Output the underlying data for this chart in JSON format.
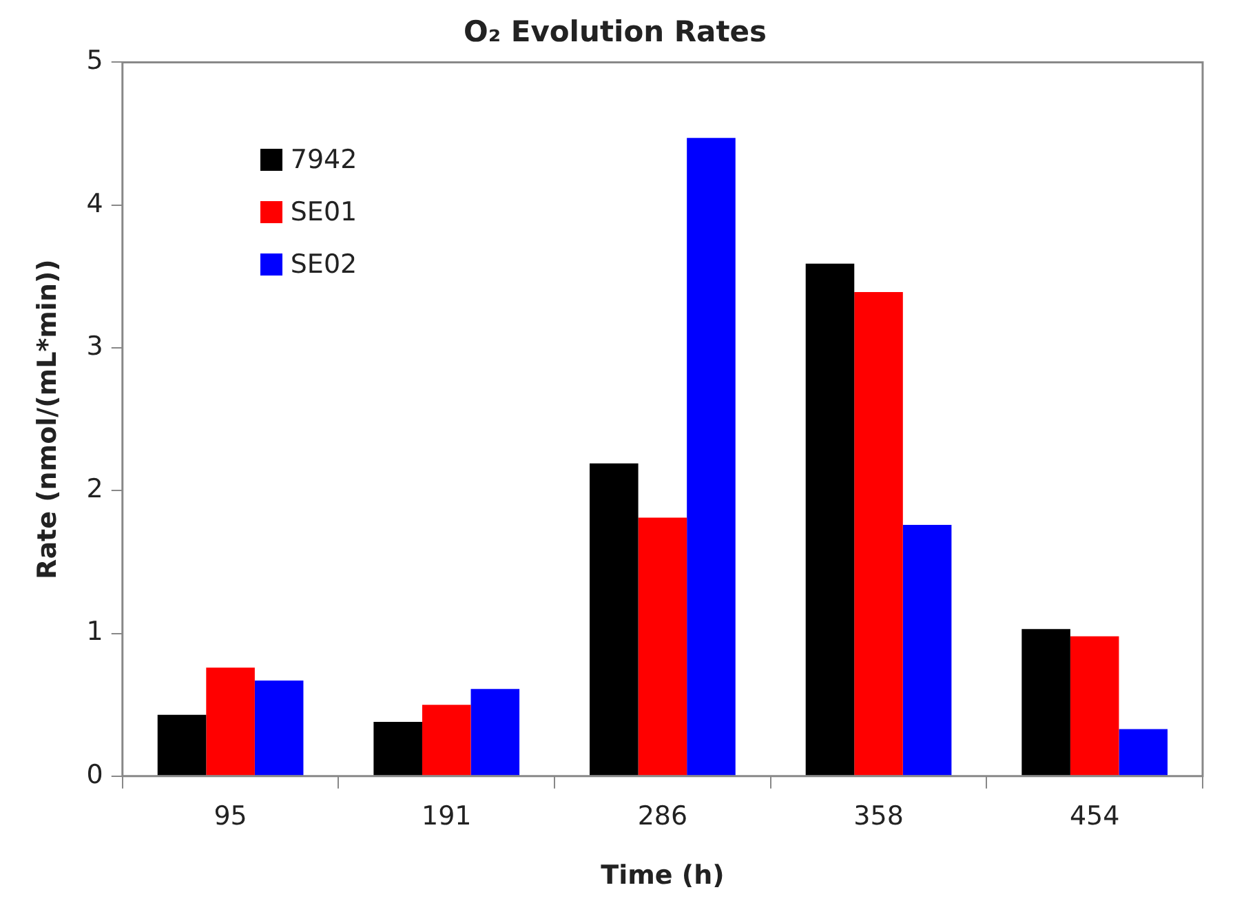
{
  "chart_data": {
    "type": "bar",
    "title": "O₂ Evolution Rates",
    "xlabel": "Time (h)",
    "ylabel": "Rate (nmol/(mL*min))",
    "categories": [
      "95",
      "191",
      "286",
      "358",
      "454"
    ],
    "series": [
      {
        "name": "7942",
        "color": "#000000",
        "values": [
          0.43,
          0.38,
          2.19,
          3.59,
          1.03
        ]
      },
      {
        "name": "SE01",
        "color": "#ff0000",
        "values": [
          0.76,
          0.5,
          1.81,
          3.39,
          0.98
        ]
      },
      {
        "name": "SE02",
        "color": "#0000ff",
        "values": [
          0.67,
          0.61,
          4.47,
          1.76,
          0.33
        ]
      }
    ],
    "ylim": [
      0,
      5
    ],
    "yticks": [
      0,
      1,
      2,
      3,
      4,
      5
    ],
    "grid": false,
    "legend": "top left"
  }
}
